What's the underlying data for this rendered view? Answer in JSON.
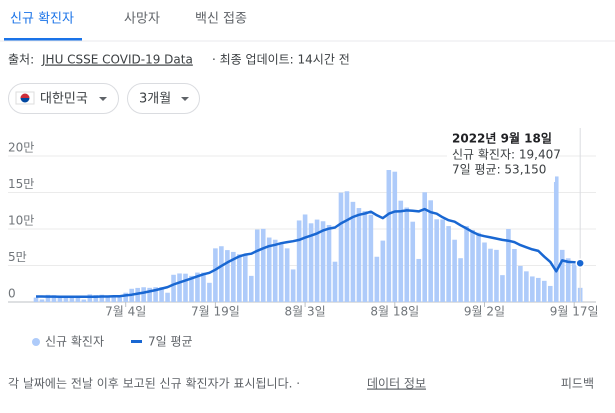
{
  "tabs": [
    "신규 확진자",
    "사망자",
    "백신 접종"
  ],
  "source": {
    "prefix": "출처:",
    "link": "JHU CSSE COVID-19 Data",
    "suffix": "· 최종 업데이트: 14시간 전"
  },
  "filters": [
    "대한민국",
    "3개월"
  ],
  "footer": {
    "note": "각 날짜에는 전날 이후 보고된 신규 확진자가 표시됩니다. ·",
    "link": "데이터 정보",
    "feedback": "피드백"
  },
  "chart_data": {
    "type": "bar",
    "categories": [
      null,
      null,
      null,
      null,
      null,
      null,
      null,
      null,
      null,
      null,
      null,
      null,
      null,
      null,
      null,
      "7월 4일",
      null,
      null,
      null,
      null,
      null,
      null,
      null,
      null,
      null,
      null,
      null,
      null,
      null,
      null,
      "7월 19일",
      null,
      null,
      null,
      null,
      null,
      null,
      null,
      null,
      null,
      null,
      null,
      null,
      null,
      null,
      "8월 3일",
      null,
      null,
      null,
      null,
      null,
      null,
      null,
      null,
      null,
      null,
      null,
      null,
      null,
      null,
      "8월 18일",
      null,
      null,
      null,
      null,
      null,
      null,
      null,
      null,
      null,
      null,
      null,
      null,
      null,
      null,
      "9월 2일",
      null,
      null,
      null,
      null,
      null,
      null,
      null,
      null,
      null,
      null,
      null,
      null,
      null,
      null,
      "9월 17일",
      null
    ],
    "series": [
      {
        "name": "신규 확진자",
        "type": "bar",
        "color": "#aecbfa",
        "values": [
          6000,
          3500,
          9800,
          9300,
          7500,
          7200,
          6200,
          5800,
          3400,
          10400,
          9500,
          9900,
          8800,
          8000,
          6200,
          12700,
          18100,
          19300,
          20200,
          19400,
          20300,
          20400,
          12700,
          37300,
          39100,
          38800,
          35800,
          40300,
          40300,
          26300,
          73500,
          76400,
          71100,
          68600,
          65400,
          65000,
          35800,
          99300,
          100200,
          88300,
          85300,
          81000,
          73500,
          44600,
          111700,
          119900,
          107800,
          112900,
          110600,
          105500,
          55200,
          149800,
          151700,
          137200,
          128700,
          124500,
          119500,
          62000,
          84100,
          180800,
          178500,
          138800,
          129400,
          110000,
          59000,
          150300,
          139300,
          113300,
          113100,
          104000,
          85300,
          60000,
          103900,
          98700,
          94900,
          81500,
          73000,
          71400,
          36800,
          100000,
          72600,
          49400,
          42000,
          35000,
          33000,
          29000,
          22000,
          172000,
          71400,
          59900,
          51900,
          19407
        ]
      },
      {
        "name": "7일 평균",
        "type": "line",
        "color": "#1967d2",
        "values": [
          7500,
          7500,
          7400,
          7400,
          7300,
          7300,
          7300,
          7200,
          7200,
          7300,
          7300,
          7500,
          7600,
          7900,
          8000,
          9000,
          10000,
          11500,
          12900,
          14500,
          16300,
          18300,
          20400,
          24000,
          26900,
          29600,
          32300,
          35200,
          38000,
          40000,
          44300,
          49500,
          54200,
          58400,
          62400,
          65000,
          66200,
          70100,
          73600,
          76600,
          78300,
          80600,
          82000,
          83300,
          85000,
          88200,
          91000,
          94000,
          98000,
          100500,
          102000,
          107700,
          112100,
          116500,
          119400,
          121300,
          123700,
          118800,
          115000,
          121000,
          124000,
          124400,
          125500,
          125000,
          124100,
          127300,
          123000,
          121000,
          116000,
          112000,
          110000,
          105000,
          100700,
          96000,
          92000,
          90200,
          88500,
          86800,
          85000,
          84000,
          82000,
          78000,
          75000,
          72000,
          70000,
          62000,
          55000,
          42000,
          57000,
          55000,
          54500,
          53150
        ]
      }
    ],
    "ylim": [
      0,
      200000
    ],
    "yticks": [
      0,
      {
        "value": 50000,
        "label": "5만"
      },
      {
        "value": 100000,
        "label": "10만"
      },
      {
        "value": 150000,
        "label": "15만"
      },
      {
        "value": 200000,
        "label": "20만"
      }
    ],
    "grid": true,
    "tooltip": {
      "title": "2022년 9월 18일",
      "lines": [
        "신규 확진자: 19,407",
        "7일 평균: 53,150"
      ]
    }
  }
}
